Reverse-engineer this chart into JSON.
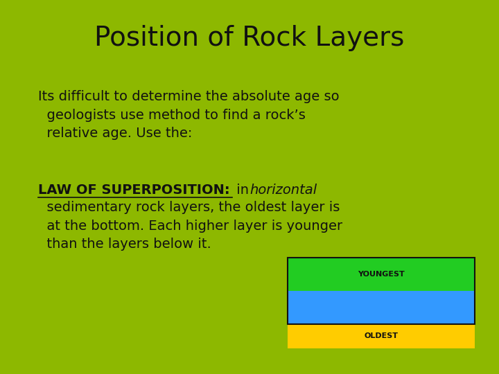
{
  "background_color": "#8db800",
  "title": "Position of Rock Layers",
  "title_fontsize": 28,
  "title_color": "#111111",
  "body_fontsize": 14,
  "body_color": "#111111",
  "law_bold_underline": "LAW OF SUPERPOSITION:",
  "layer_top_color": "#22cc22",
  "layer_mid_color": "#3399ff",
  "layer_bot_color": "#ffcc00",
  "layer_top_label": "YOUNGEST",
  "layer_bot_label": "OLDEST",
  "layer_label_fontsize": 8,
  "border_color": "#111111"
}
